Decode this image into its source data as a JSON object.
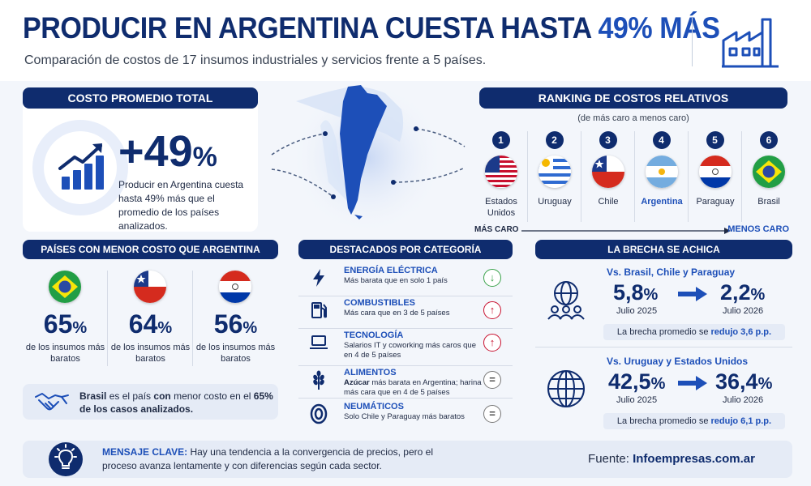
{
  "header": {
    "title_main": "PRODUCIR EN ARGENTINA CUESTA HASTA ",
    "title_highlight": "49% MÁS",
    "subtitle": "Comparación de costos de 17 insumos industriales y servicios frente a 5 países.",
    "icon": "factory-icon"
  },
  "costo_promedio": {
    "title": "COSTO PROMEDIO TOTAL",
    "value": "+49",
    "unit": "%",
    "description": "Producir en Argentina cuesta hasta 49% más que el promedio de los países analizados.",
    "icon": "chart-up-icon"
  },
  "map": {
    "icon": "argentina-map"
  },
  "ranking": {
    "title": "RANKING DE COSTOS RELATIVOS",
    "subtitle": "(de más caro a menos caro)",
    "items": [
      {
        "rank": "1",
        "name": "Estados Unidos",
        "flag": "usa-flag",
        "highlight": false
      },
      {
        "rank": "2",
        "name": "Uruguay",
        "flag": "uruguay-flag",
        "highlight": false
      },
      {
        "rank": "3",
        "name": "Chile",
        "flag": "chile-flag",
        "highlight": false
      },
      {
        "rank": "4",
        "name": "Argentina",
        "flag": "argentina-flag",
        "highlight": true
      },
      {
        "rank": "5",
        "name": "Paraguay",
        "flag": "paraguay-flag",
        "highlight": false
      },
      {
        "rank": "6",
        "name": "Brasil",
        "flag": "brazil-flag",
        "highlight": false
      }
    ],
    "scale_left": "MÁS CARO",
    "scale_right": "MENOS CARO"
  },
  "paises_menor_costo": {
    "title": "PAÍSES CON MENOR COSTO QUE ARGENTINA",
    "items": [
      {
        "country": "brazil",
        "value": "65",
        "unit": "%",
        "desc": "de los insumos más baratos"
      },
      {
        "country": "chile",
        "value": "64",
        "unit": "%",
        "desc": "de los insumos más baratos"
      },
      {
        "country": "paraguay",
        "value": "56",
        "unit": "%",
        "desc": "de los insumos más baratos"
      }
    ],
    "note_a": "Brasil",
    "note_b": " es el país ",
    "note_c": "con",
    "note_d": " menor costo en el ",
    "note_e": "65% de los casos analizados.",
    "note_icon": "handshake-icon"
  },
  "destacados": {
    "title": "DESTACADOS POR CATEGORÍA",
    "items": [
      {
        "name": "ENERGÍA ELÉCTRICA",
        "desc": "Más barata que en solo 1 país",
        "icon": "lightning-icon",
        "badge": "↓",
        "trend": "down"
      },
      {
        "name": "COMBUSTIBLES",
        "desc": "Más cara que en 3 de 5 países",
        "icon": "fuel-pump-icon",
        "badge": "↑",
        "trend": "up"
      },
      {
        "name": "TECNOLOGÍA",
        "desc": "Salarios IT y coworking más caros que en 4 de 5 países",
        "icon": "laptop-icon",
        "badge": "↑",
        "trend": "up"
      },
      {
        "name": "ALIMENTOS",
        "desc_bold": "Azúcar",
        "desc": " más barata en Argentina; harina más cara que en 4 de 5 países",
        "icon": "wheat-icon",
        "badge": "=",
        "trend": "eq"
      },
      {
        "name": "NEUMÁTICOS",
        "desc": "Solo Chile y Paraguay más baratos",
        "icon": "tire-icon",
        "badge": "=",
        "trend": "eq"
      }
    ]
  },
  "brecha": {
    "title": "LA BRECHA SE ACHICA",
    "blocks": [
      {
        "subtitle": "Vs. Brasil, Chile y Paraguay",
        "from_value": "5,8",
        "from_unit": "%",
        "from_date": "Julio 2025",
        "to_value": "2,2",
        "to_unit": "%",
        "to_date": "Julio 2026",
        "note_prefix": "La brecha promedio se ",
        "note_bold": "redujo 3,6 p.p.",
        "icon": "people-globe-icon"
      },
      {
        "subtitle": "Vs. Uruguay y Estados Unidos",
        "from_value": "42,5",
        "from_unit": "%",
        "from_date": "Julio 2025",
        "to_value": "36,4",
        "to_unit": "%",
        "to_date": "Julio 2026",
        "note_prefix": "La brecha promedio se ",
        "note_bold": "redujo 6,1 p.p.",
        "icon": "globe-icon"
      }
    ]
  },
  "footer": {
    "label": "MENSAJE CLAVE:",
    "text": " Hay una tendencia a la convergencia de precios, pero el proceso avanza lentamente y con diferencias según cada sector.",
    "source_label": "Fuente: ",
    "source": "Infoempresas.com.ar",
    "icon": "lightbulb-icon"
  },
  "colors": {
    "navy": "#0f2c6e",
    "accent": "#1d4fb8",
    "down": "#3aa24a",
    "up": "#c8102e"
  }
}
